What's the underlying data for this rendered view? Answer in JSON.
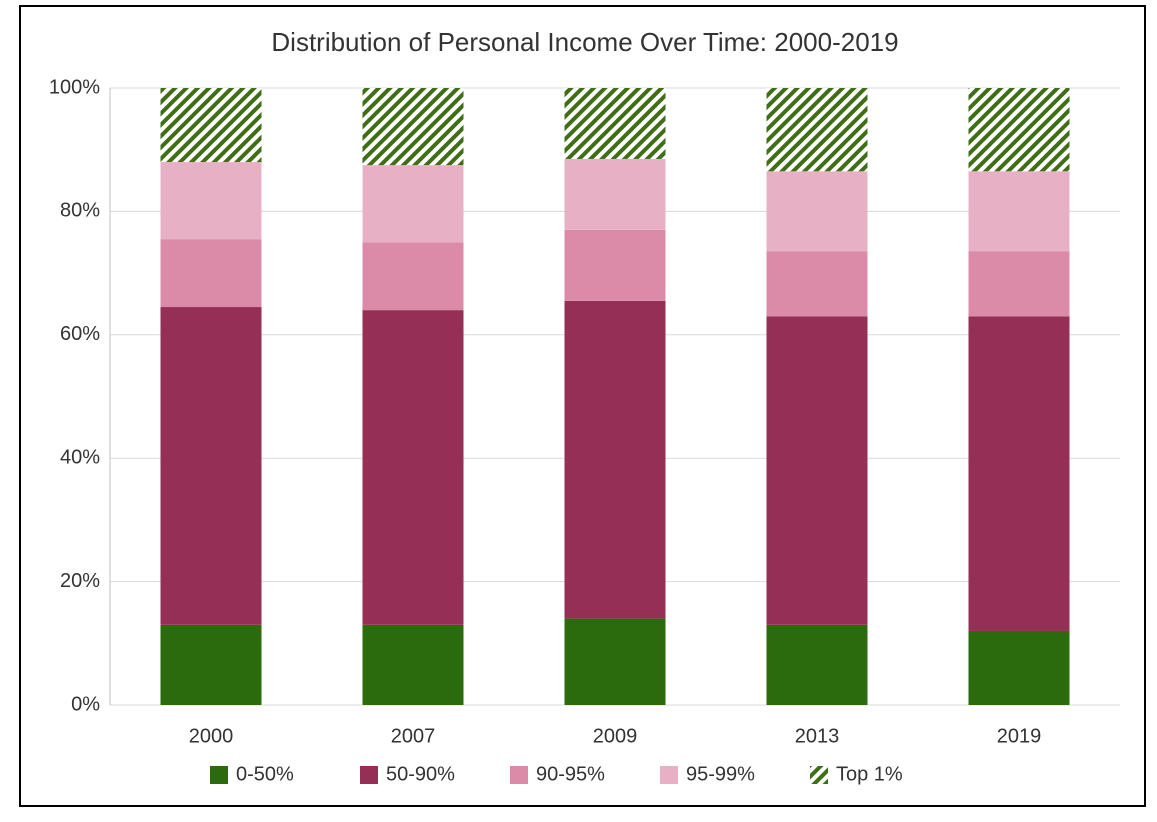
{
  "chart_data": {
    "type": "stacked-bar",
    "title": "Distribution of Personal Income Over Time: 2000-2019",
    "categories": [
      "2000",
      "2007",
      "2009",
      "2013",
      "2019"
    ],
    "series": [
      {
        "name": "0-50%",
        "color": "#2b6a0d",
        "values": [
          13,
          13,
          14,
          13,
          12
        ]
      },
      {
        "name": "50-90%",
        "color": "#962f56",
        "values": [
          51.5,
          51,
          51.5,
          50,
          51
        ]
      },
      {
        "name": "90-95%",
        "color": "#db8aa8",
        "values": [
          11,
          11,
          11.5,
          10.5,
          10.5
        ]
      },
      {
        "name": "95-99%",
        "color": "#e8b0c4",
        "values": [
          12.5,
          12.5,
          11.5,
          13,
          13
        ]
      },
      {
        "name": "Top 1%",
        "color": "#3f6e17",
        "hatch": true,
        "values": [
          12,
          12.5,
          11.5,
          13.5,
          13.5
        ]
      }
    ],
    "ylim": [
      0,
      100
    ],
    "yticks": [
      {
        "value": 0,
        "label": "0%"
      },
      {
        "value": 20,
        "label": "20%"
      },
      {
        "value": 40,
        "label": "40%"
      },
      {
        "value": 60,
        "label": "60%"
      },
      {
        "value": 80,
        "label": "80%"
      },
      {
        "value": 100,
        "label": "100%"
      }
    ],
    "grid": true,
    "legend": "bottom"
  }
}
